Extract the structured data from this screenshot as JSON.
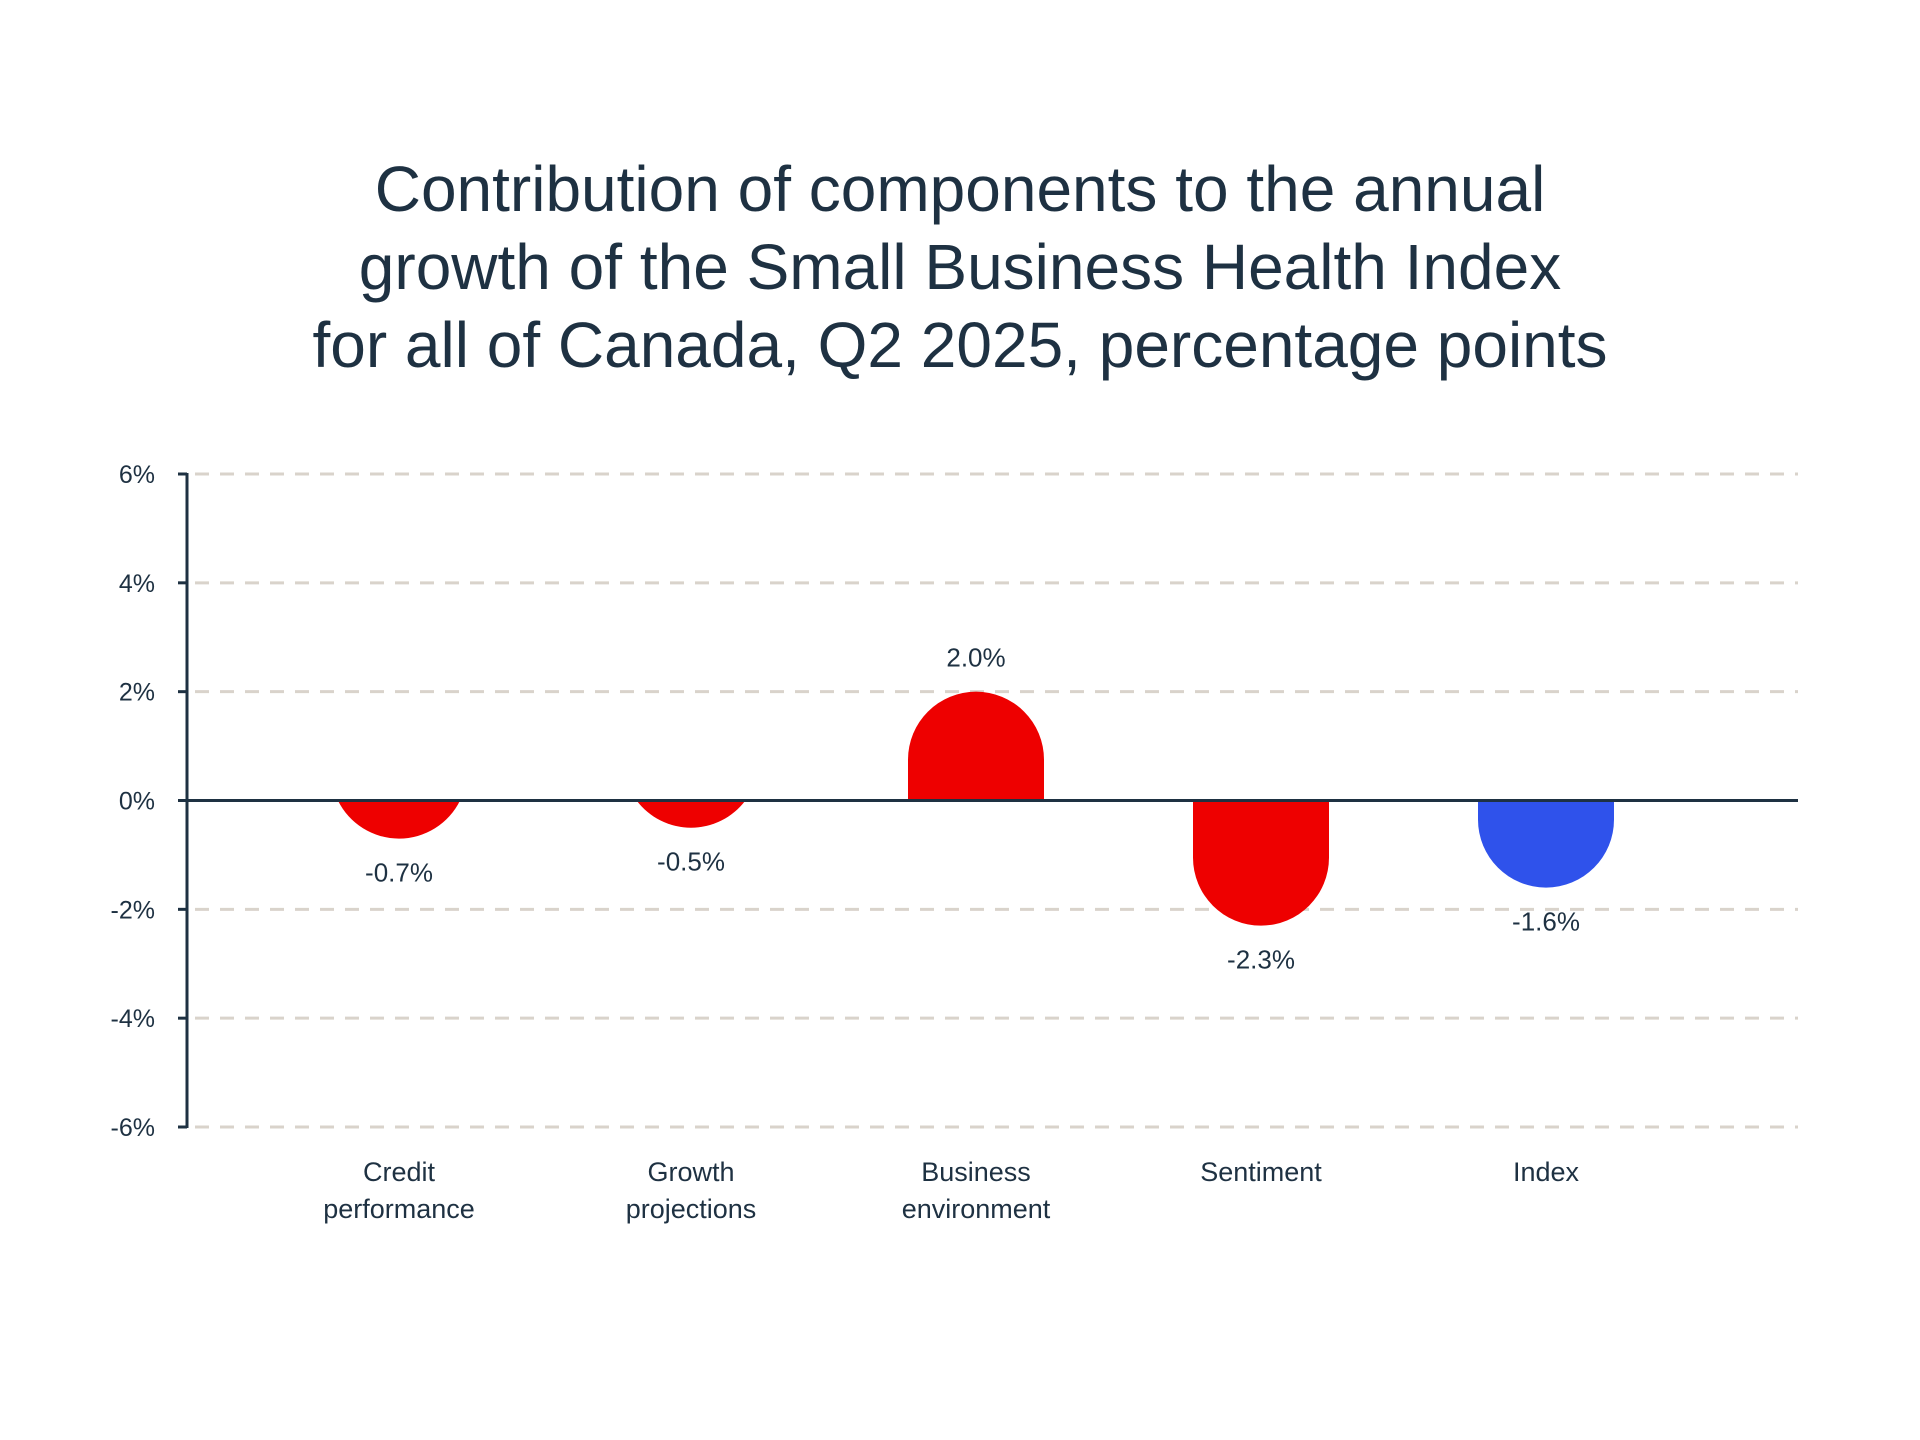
{
  "chart_data": {
    "type": "bar",
    "title": "Contribution of components to the annual growth of the Small Business Health Index for all of Canada, Q2 2025, percentage points",
    "title_lines": [
      "Contribution of components to the annual",
      "growth of the Small Business Health Index",
      "for all of Canada, Q2 2025, percentage points"
    ],
    "xlabel": "",
    "ylabel": "",
    "ylim": [
      -6,
      6
    ],
    "yticks": [
      6,
      4,
      2,
      0,
      -2,
      -4,
      -6
    ],
    "ytick_labels": [
      "6%",
      "4%",
      "2%",
      "0%",
      "-2%",
      "-4%",
      "-6%"
    ],
    "grid": true,
    "categories": [
      [
        "Credit",
        "performance"
      ],
      [
        "Growth",
        "projections"
      ],
      [
        "Business",
        "environment"
      ],
      [
        "Sentiment"
      ],
      [
        "Index"
      ]
    ],
    "values": [
      -0.7,
      -0.5,
      2.0,
      -2.3,
      -1.6
    ],
    "data_labels": [
      "-0.7%",
      "-0.5%",
      "2.0%",
      "-2.3%",
      "-1.6%"
    ],
    "bar_colors": [
      "#ee0000",
      "#ee0000",
      "#ee0000",
      "#ee0000",
      "#2f52eb"
    ],
    "colors": {
      "component": "#ee0000",
      "index": "#2f52eb",
      "text": "#1e3142",
      "axis": "#1e3142",
      "grid": "#d9d3cb"
    }
  }
}
